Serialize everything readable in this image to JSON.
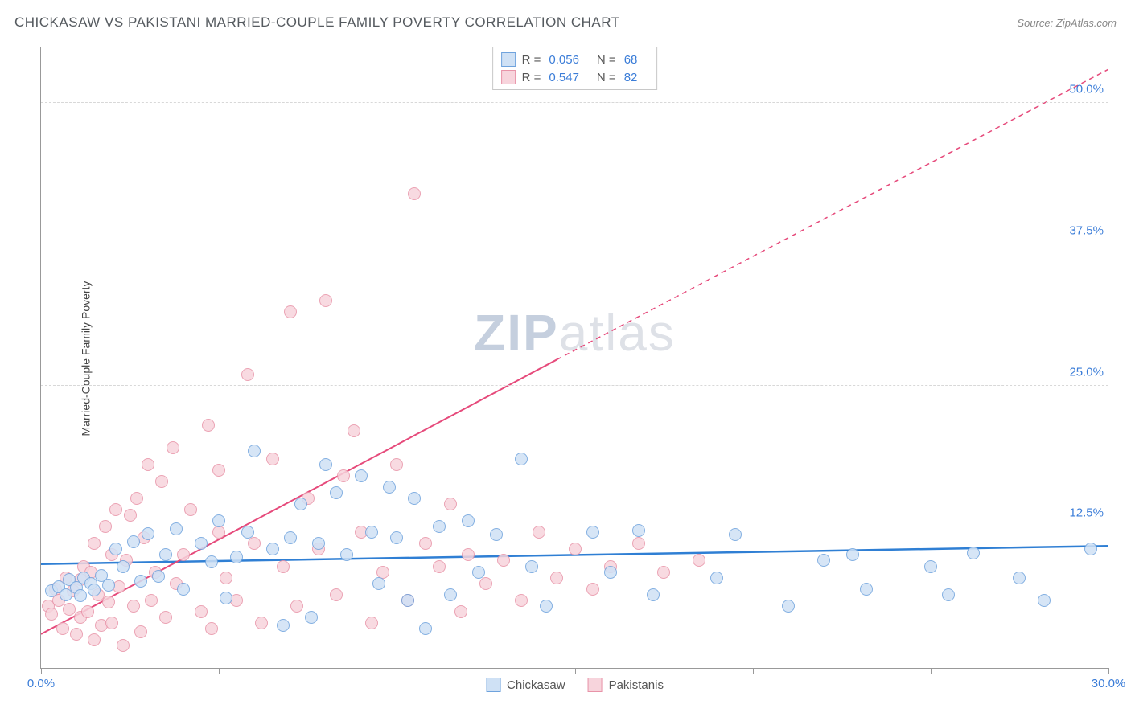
{
  "title": "CHICKASAW VS PAKISTANI MARRIED-COUPLE FAMILY POVERTY CORRELATION CHART",
  "source_label": "Source:",
  "source_name": "ZipAtlas.com",
  "y_axis_label": "Married-Couple Family Poverty",
  "watermark_zip": "ZIP",
  "watermark_rest": "atlas",
  "chart": {
    "type": "scatter",
    "xlim": [
      0,
      30
    ],
    "ylim": [
      0,
      55
    ],
    "x_ticks": [
      0,
      5,
      10,
      15,
      20,
      25,
      30
    ],
    "x_tick_labels": {
      "0": "0.0%",
      "30": "30.0%"
    },
    "y_ticks": [
      12.5,
      25.0,
      37.5,
      50.0
    ],
    "y_tick_labels": [
      "12.5%",
      "25.0%",
      "37.5%",
      "50.0%"
    ],
    "y_tick_color": "#3b7dd8",
    "x_tick_color_left": "#3b7dd8",
    "x_tick_color_right": "#3b7dd8",
    "background_color": "#ffffff",
    "grid_color": "#d8d8d8",
    "point_radius": 8
  },
  "series": {
    "chickasaw": {
      "label": "Chickasaw",
      "R_label": "R =",
      "R": "0.056",
      "N_label": "N =",
      "N": "68",
      "fill": "#cfe1f5",
      "stroke": "#6fa3dd",
      "line_color": "#2f7fd4",
      "trend": {
        "x1": 0,
        "y1": 9.2,
        "x2": 30,
        "y2": 10.8
      },
      "points": [
        [
          0.3,
          6.8
        ],
        [
          0.5,
          7.2
        ],
        [
          0.7,
          6.5
        ],
        [
          0.8,
          7.8
        ],
        [
          1.0,
          7.1
        ],
        [
          1.1,
          6.4
        ],
        [
          1.2,
          8.0
        ],
        [
          1.4,
          7.5
        ],
        [
          1.5,
          6.9
        ],
        [
          1.7,
          8.2
        ],
        [
          1.9,
          7.3
        ],
        [
          2.1,
          10.5
        ],
        [
          2.3,
          9.0
        ],
        [
          2.6,
          11.2
        ],
        [
          2.8,
          7.7
        ],
        [
          3.0,
          11.9
        ],
        [
          3.3,
          8.1
        ],
        [
          3.5,
          10.0
        ],
        [
          3.8,
          12.3
        ],
        [
          4.0,
          7.0
        ],
        [
          4.5,
          11.0
        ],
        [
          4.8,
          9.4
        ],
        [
          5.0,
          13.0
        ],
        [
          5.2,
          6.2
        ],
        [
          5.5,
          9.8
        ],
        [
          5.8,
          12.0
        ],
        [
          6.0,
          19.2
        ],
        [
          6.5,
          10.5
        ],
        [
          6.8,
          3.8
        ],
        [
          7.0,
          11.5
        ],
        [
          7.3,
          14.5
        ],
        [
          7.6,
          4.5
        ],
        [
          7.8,
          11.0
        ],
        [
          8.0,
          18.0
        ],
        [
          8.3,
          15.5
        ],
        [
          8.6,
          10.0
        ],
        [
          9.0,
          17.0
        ],
        [
          9.3,
          12.0
        ],
        [
          9.5,
          7.5
        ],
        [
          9.8,
          16.0
        ],
        [
          10.0,
          11.5
        ],
        [
          10.3,
          6.0
        ],
        [
          10.5,
          15.0
        ],
        [
          10.8,
          3.5
        ],
        [
          11.2,
          12.5
        ],
        [
          11.5,
          6.5
        ],
        [
          12.0,
          13.0
        ],
        [
          12.3,
          8.5
        ],
        [
          12.8,
          11.8
        ],
        [
          13.5,
          18.5
        ],
        [
          13.8,
          9.0
        ],
        [
          14.2,
          5.5
        ],
        [
          15.5,
          12.0
        ],
        [
          16.0,
          8.5
        ],
        [
          16.8,
          12.2
        ],
        [
          17.2,
          6.5
        ],
        [
          19.0,
          8.0
        ],
        [
          19.5,
          11.8
        ],
        [
          21.0,
          5.5
        ],
        [
          22.0,
          9.5
        ],
        [
          22.8,
          10.0
        ],
        [
          23.2,
          7.0
        ],
        [
          25.0,
          9.0
        ],
        [
          25.5,
          6.5
        ],
        [
          26.2,
          10.2
        ],
        [
          27.5,
          8.0
        ],
        [
          28.2,
          6.0
        ],
        [
          29.5,
          10.5
        ]
      ]
    },
    "pakistanis": {
      "label": "Pakistanis",
      "R_label": "R =",
      "R": "0.547",
      "N_label": "N =",
      "N": "82",
      "fill": "#f7d4dc",
      "stroke": "#e893a8",
      "line_color": "#e64a7b",
      "trend_solid": {
        "x1": 0,
        "y1": 3.0,
        "x2": 14.5,
        "y2": 27.3
      },
      "trend_dash": {
        "x1": 14.5,
        "y1": 27.3,
        "x2": 30,
        "y2": 53.0
      },
      "points": [
        [
          0.2,
          5.5
        ],
        [
          0.3,
          4.8
        ],
        [
          0.4,
          7.0
        ],
        [
          0.5,
          6.0
        ],
        [
          0.6,
          3.5
        ],
        [
          0.7,
          8.0
        ],
        [
          0.8,
          5.2
        ],
        [
          0.9,
          6.8
        ],
        [
          1.0,
          3.0
        ],
        [
          1.1,
          7.8
        ],
        [
          1.1,
          4.5
        ],
        [
          1.2,
          9.0
        ],
        [
          1.3,
          5.0
        ],
        [
          1.4,
          8.5
        ],
        [
          1.5,
          2.5
        ],
        [
          1.5,
          11.0
        ],
        [
          1.6,
          6.5
        ],
        [
          1.7,
          3.8
        ],
        [
          1.8,
          12.5
        ],
        [
          1.9,
          5.8
        ],
        [
          2.0,
          10.0
        ],
        [
          2.0,
          4.0
        ],
        [
          2.1,
          14.0
        ],
        [
          2.2,
          7.2
        ],
        [
          2.3,
          2.0
        ],
        [
          2.4,
          9.5
        ],
        [
          2.5,
          13.5
        ],
        [
          2.6,
          5.5
        ],
        [
          2.7,
          15.0
        ],
        [
          2.8,
          3.2
        ],
        [
          2.9,
          11.5
        ],
        [
          3.0,
          18.0
        ],
        [
          3.1,
          6.0
        ],
        [
          3.2,
          8.5
        ],
        [
          3.4,
          16.5
        ],
        [
          3.5,
          4.5
        ],
        [
          3.7,
          19.5
        ],
        [
          3.8,
          7.5
        ],
        [
          4.0,
          10.0
        ],
        [
          4.2,
          14.0
        ],
        [
          4.5,
          5.0
        ],
        [
          4.7,
          21.5
        ],
        [
          4.8,
          3.5
        ],
        [
          5.0,
          12.0
        ],
        [
          5.0,
          17.5
        ],
        [
          5.2,
          8.0
        ],
        [
          5.5,
          6.0
        ],
        [
          5.8,
          26.0
        ],
        [
          6.0,
          11.0
        ],
        [
          6.2,
          4.0
        ],
        [
          6.5,
          18.5
        ],
        [
          6.8,
          9.0
        ],
        [
          7.0,
          31.5
        ],
        [
          7.2,
          5.5
        ],
        [
          7.5,
          15.0
        ],
        [
          7.8,
          10.5
        ],
        [
          8.0,
          32.5
        ],
        [
          8.3,
          6.5
        ],
        [
          8.5,
          17.0
        ],
        [
          8.8,
          21.0
        ],
        [
          9.0,
          12.0
        ],
        [
          9.3,
          4.0
        ],
        [
          9.6,
          8.5
        ],
        [
          10.0,
          18.0
        ],
        [
          10.3,
          6.0
        ],
        [
          10.5,
          42.0
        ],
        [
          10.8,
          11.0
        ],
        [
          11.2,
          9.0
        ],
        [
          11.5,
          14.5
        ],
        [
          11.8,
          5.0
        ],
        [
          12.0,
          10.0
        ],
        [
          12.5,
          7.5
        ],
        [
          13.0,
          9.5
        ],
        [
          13.5,
          6.0
        ],
        [
          14.0,
          12.0
        ],
        [
          14.5,
          8.0
        ],
        [
          15.0,
          10.5
        ],
        [
          15.5,
          7.0
        ],
        [
          16.0,
          9.0
        ],
        [
          16.8,
          11.0
        ],
        [
          17.5,
          8.5
        ],
        [
          18.5,
          9.5
        ]
      ]
    }
  }
}
